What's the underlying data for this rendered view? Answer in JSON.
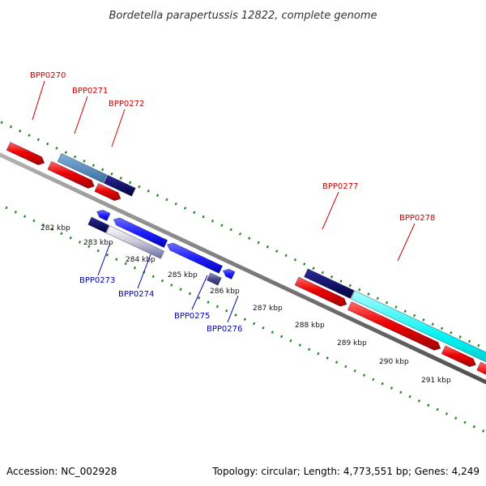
{
  "title": "Bordetella parapertussis 12822, complete genome",
  "footer": {
    "accession": "Accession: NC_002928",
    "summary": "Topology: circular; Length: 4,773,551 bp; Genes: 4,249"
  },
  "colors": {
    "forward_label": "#cc0000",
    "reverse_label": "#0000aa",
    "tick_marks": "#228822",
    "backbone": "#808080",
    "red_feature": "#ee0000",
    "steelblue_feature": "#4f84b8",
    "navy_feature": "#000066",
    "blue_feature": "#1f1fff",
    "cyan_feature": "#00f0f0",
    "silver_feature": "#c8c8d8",
    "slate_feature": "#6b6ba8",
    "tick_label": "#111111",
    "title": "#333333"
  },
  "ticks": [
    {
      "label": "282 kbp"
    },
    {
      "label": "283 kbp"
    },
    {
      "label": "284 kbp"
    },
    {
      "label": "285 kbp"
    },
    {
      "label": "286 kbp"
    },
    {
      "label": "287 kbp"
    },
    {
      "label": "288 kbp"
    },
    {
      "label": "289 kbp"
    },
    {
      "label": "290 kbp"
    },
    {
      "label": "291 kbp"
    }
  ],
  "forward_genes": [
    {
      "label": "BPP0270"
    },
    {
      "label": "BPP0271"
    },
    {
      "label": "BPP0272"
    },
    {
      "label": "BPP0277"
    },
    {
      "label": "BPP0278"
    }
  ],
  "reverse_genes": [
    {
      "label": "BPP0273"
    },
    {
      "label": "BPP0274"
    },
    {
      "label": "BPP0275"
    },
    {
      "label": "BPP0276"
    }
  ]
}
